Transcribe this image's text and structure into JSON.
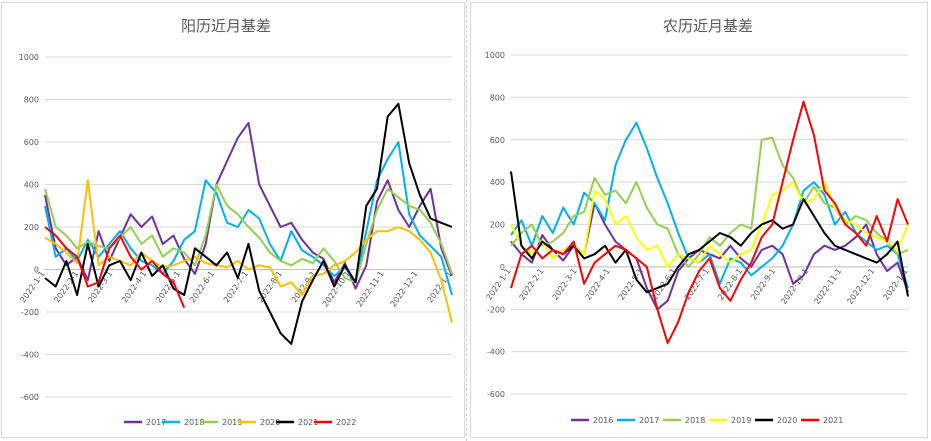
{
  "chart_data": [
    {
      "type": "line",
      "title": "阳历近月基差",
      "ylim": [
        -600,
        1000
      ],
      "yticks": [
        1000,
        800,
        600,
        400,
        200,
        0,
        -200,
        -400,
        -600
      ],
      "grid": true,
      "legend_position": "bottom",
      "x_tick_labels": [
        "2022-1-1",
        "2022-2-1",
        "2022-3-1",
        "2022-4-1",
        "2022-5-1",
        "2022-6-1",
        "2022-7-1",
        "2022-8-1",
        "2022-9-1",
        "2022-10-1",
        "2022-11-1",
        "2022-12-1",
        "2022-1-1"
      ],
      "series": [
        {
          "name": "2017",
          "color": "#7030a0",
          "values": [
            350,
            100,
            20,
            60,
            -50,
            180,
            40,
            150,
            260,
            200,
            250,
            120,
            160,
            50,
            -20,
            120,
            400,
            510,
            620,
            690,
            400,
            300,
            200,
            220,
            140,
            80,
            50,
            -60,
            30,
            -90,
            20,
            320,
            420,
            280,
            200,
            300,
            380,
            100,
            -30
          ]
        },
        {
          "name": "2018",
          "color": "#00b0f0",
          "values": [
            300,
            60,
            100,
            40,
            140,
            60,
            120,
            180,
            100,
            40,
            20,
            -20,
            40,
            140,
            180,
            420,
            360,
            220,
            200,
            280,
            240,
            120,
            40,
            180,
            90,
            60,
            20,
            -30,
            10,
            -60,
            180,
            420,
            520,
            600,
            260,
            160,
            110,
            60,
            -120
          ]
        },
        {
          "name": "2019",
          "color": "#92d050",
          "values": [
            380,
            200,
            160,
            100,
            130,
            110,
            100,
            150,
            200,
            120,
            160,
            60,
            100,
            80,
            20,
            160,
            400,
            300,
            260,
            200,
            150,
            80,
            40,
            20,
            50,
            30,
            100,
            40,
            -40,
            -60,
            120,
            280,
            380,
            340,
            300,
            280,
            220,
            120,
            -20
          ]
        },
        {
          "name": "2020",
          "color": "#ffc000",
          "values": [
            150,
            120,
            80,
            30,
            420,
            20,
            60,
            40,
            20,
            80,
            40,
            10,
            20,
            40,
            60,
            30,
            20,
            10,
            40,
            0,
            20,
            10,
            -80,
            -60,
            -120,
            -30,
            -20,
            20,
            40,
            80,
            140,
            180,
            180,
            200,
            180,
            140,
            80,
            -50,
            -250
          ]
        },
        {
          "name": "2021",
          "color": "#000000",
          "values": [
            -40,
            -80,
            40,
            -120,
            120,
            -80,
            20,
            40,
            -50,
            80,
            -30,
            20,
            -90,
            -120,
            100,
            60,
            20,
            80,
            -40,
            120,
            -100,
            -200,
            -300,
            -350,
            -150,
            -50,
            40,
            -80,
            20,
            -60,
            300,
            380,
            720,
            780,
            500,
            350,
            240,
            220,
            200
          ]
        },
        {
          "name": "2022",
          "color": "#ff0000",
          "values": [
            200,
            160,
            100,
            60,
            -80,
            -60,
            100,
            160,
            60,
            0,
            40,
            -20,
            -60,
            -180
          ]
        }
      ]
    },
    {
      "type": "line",
      "title": "农历近月基差",
      "ylim": [
        -600,
        1000
      ],
      "yticks": [
        1000,
        800,
        600,
        400,
        200,
        0,
        -200,
        -400,
        -600
      ],
      "grid": true,
      "legend_position": "bottom",
      "x_tick_labels": [
        "2022-1-1",
        "2022-2-1",
        "2022-3-1",
        "2022-4-1",
        "2022-5-1",
        "2022-6-1",
        "2022-7-1",
        "2022-8-1",
        "2022-9-1",
        "2022-10-1",
        "2022-11-1",
        "2022-12-1",
        "2022-1-1"
      ],
      "series": [
        {
          "name": "2016",
          "color": "#7030a0",
          "values": [
            120,
            60,
            20,
            150,
            80,
            30,
            100,
            60,
            300,
            200,
            120,
            80,
            40,
            -100,
            -200,
            -160,
            -20,
            40,
            80,
            60,
            40,
            100,
            40,
            0,
            80,
            100,
            60,
            -80,
            -40,
            60,
            100,
            80,
            100,
            140,
            200,
            60,
            -20,
            20,
            -120
          ]
        },
        {
          "name": "2017",
          "color": "#00b0f0",
          "values": [
            150,
            220,
            100,
            240,
            160,
            280,
            200,
            350,
            300,
            220,
            480,
            600,
            680,
            560,
            420,
            300,
            160,
            40,
            20,
            60,
            -80,
            40,
            20,
            -40,
            0,
            40,
            100,
            200,
            360,
            400,
            340,
            200,
            260,
            160,
            120,
            80,
            100,
            60,
            -100
          ]
        },
        {
          "name": "2018",
          "color": "#92d050",
          "values": [
            100,
            160,
            200,
            100,
            120,
            160,
            240,
            260,
            420,
            340,
            360,
            300,
            400,
            280,
            200,
            180,
            60,
            0,
            60,
            140,
            100,
            160,
            200,
            180,
            600,
            610,
            480,
            420,
            300,
            380,
            300,
            280,
            200,
            240,
            220,
            160,
            120,
            60,
            80
          ]
        },
        {
          "name": "2019",
          "color": "#ffff00",
          "values": [
            200,
            100,
            60,
            120,
            40,
            80,
            100,
            60,
            360,
            320,
            200,
            240,
            140,
            80,
            100,
            0,
            60,
            40,
            20,
            100,
            60,
            20,
            60,
            80,
            200,
            340,
            360,
            400,
            300,
            320,
            400,
            280,
            220,
            200,
            160,
            140,
            120,
            80,
            200
          ]
        },
        {
          "name": "2020",
          "color": "#000000",
          "values": [
            450,
            100,
            40,
            120,
            80,
            60,
            100,
            40,
            60,
            100,
            20,
            80,
            -60,
            -120,
            -100,
            -80,
            0,
            60,
            80,
            120,
            160,
            140,
            100,
            160,
            200,
            220,
            180,
            200,
            320,
            240,
            160,
            100,
            80,
            60,
            40,
            20,
            60,
            120,
            -140
          ]
        },
        {
          "name": "2021",
          "color": "#ff0000",
          "values": [
            -100,
            60,
            100,
            40,
            80,
            60,
            120,
            -80,
            20,
            60,
            100,
            80,
            40,
            0,
            -200,
            -360,
            -260,
            -120,
            -20,
            40,
            -100,
            -160,
            -60,
            20,
            140,
            200,
            400,
            600,
            780,
            620,
            360,
            300,
            200,
            160,
            100,
            240,
            120,
            320,
            200
          ]
        }
      ]
    }
  ]
}
